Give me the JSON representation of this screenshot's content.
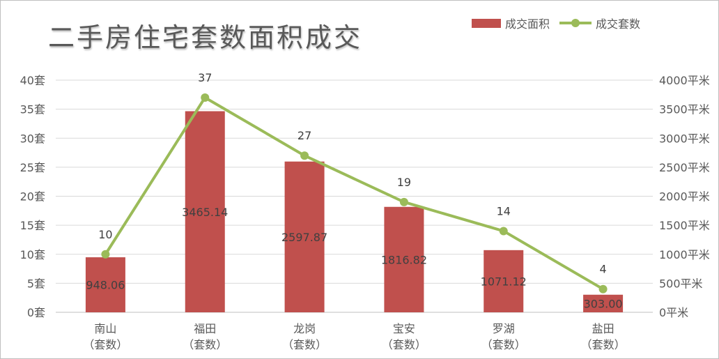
{
  "colors": {
    "bar": "#c0504d",
    "line": "#9bbb59",
    "grid": "#d9d9d9",
    "text": "#595959"
  },
  "chart_data": {
    "type": "bar+line",
    "title": "二手房住宅套数面积成交",
    "categories": [
      "南山\n（套数）",
      "福田\n（套数）",
      "龙岗\n（套数）",
      "宝安\n（套数）",
      "罗湖\n（套数）",
      "盐田\n（套数）"
    ],
    "series": [
      {
        "name": "成交面积",
        "kind": "bar",
        "axis": "right",
        "values": [
          948.06,
          3465.14,
          2597.87,
          1816.82,
          1071.12,
          303.0
        ],
        "labels": [
          "948.06",
          "3465.14",
          "2597.87",
          "1816.82",
          "1071.12",
          "303.00"
        ]
      },
      {
        "name": "成交套数",
        "kind": "line",
        "axis": "left",
        "values": [
          10,
          37,
          27,
          19,
          14,
          4
        ],
        "labels": [
          "10",
          "37",
          "27",
          "19",
          "14",
          "4"
        ]
      }
    ],
    "left_axis": {
      "min": 0,
      "max": 40,
      "ticks": [
        0,
        5,
        10,
        15,
        20,
        25,
        30,
        35,
        40
      ],
      "tick_labels": [
        "0套",
        "5套",
        "10套",
        "15套",
        "20套",
        "25套",
        "30套",
        "35套",
        "40套"
      ]
    },
    "right_axis": {
      "min": 0,
      "max": 4000,
      "ticks": [
        0,
        500,
        1000,
        1500,
        2000,
        2500,
        3000,
        3500,
        4000
      ],
      "tick_labels": [
        "0平米",
        "500平米",
        "1000平米",
        "1500平米",
        "2000平米",
        "2500平米",
        "3000平米",
        "3500平米",
        "4000平米"
      ]
    },
    "grid": true,
    "legend": "top-right"
  }
}
